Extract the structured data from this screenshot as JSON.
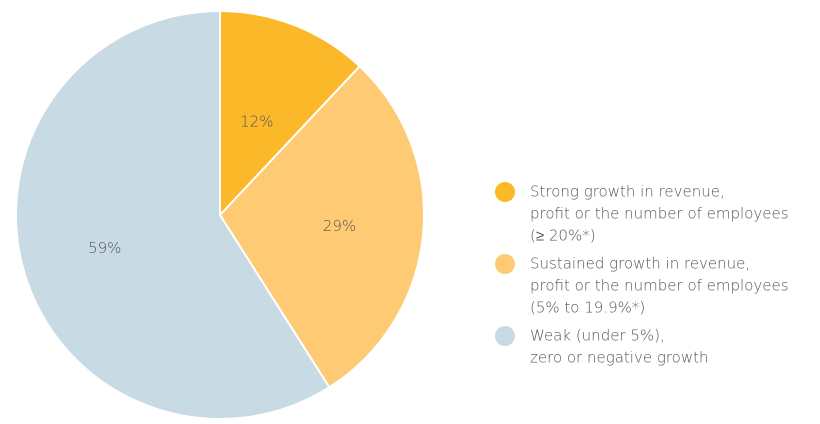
{
  "chart_data": {
    "type": "pie",
    "categories": [
      [
        "Strong growth in revenue,",
        "profit or the number of employees",
        "(≥ 20%*)"
      ],
      [
        "Sustained growth in revenue,",
        "profit or the number of employees",
        "(5% to 19.9%*)"
      ],
      [
        "Weak (under 5%),",
        "zero or negative growth"
      ]
    ],
    "values": [
      12,
      29,
      59
    ],
    "value_labels": [
      "12%",
      "29%",
      "59%"
    ],
    "colors": [
      "#fbb829",
      "#fecb74",
      "#c8dae4"
    ],
    "legend": "right"
  }
}
